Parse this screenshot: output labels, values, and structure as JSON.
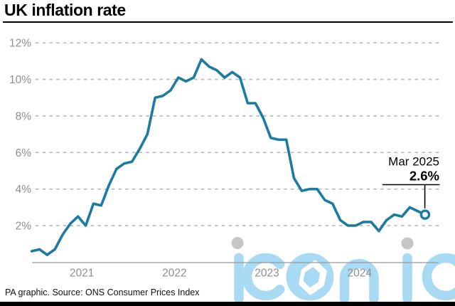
{
  "header": {
    "title": "UK inflation rate"
  },
  "footer": {
    "source": "PA graphic. Source: ONS Consumer Prices Index"
  },
  "watermark": {
    "text": "iconic"
  },
  "colors": {
    "line": "#1b7ba2",
    "grid": "#b7b7b7",
    "axis": "#999999",
    "tick_label": "#8f8f8f",
    "annotation": "#000000",
    "watermark_blue": "#a8daf3",
    "watermark_dot": "#c6c6c6"
  },
  "chart_data": {
    "type": "line",
    "title": "UK inflation rate",
    "xlabel": "",
    "ylabel": "",
    "unit": "%",
    "line_color": "#1b7ba2",
    "grid": "horizontal-dashed",
    "legend": "none",
    "ylim": [
      0,
      12.6
    ],
    "y_ticks": [
      2,
      4,
      6,
      8,
      10,
      12
    ],
    "y_tick_labels": [
      "2%",
      "4%",
      "6%",
      "8%",
      "10%",
      "12%"
    ],
    "x_tick_labels": [
      "2021",
      "2022",
      "2023",
      "2024"
    ],
    "annotation": {
      "label": "Mar 2025",
      "value": "2.6%"
    },
    "x": [
      "Dec 2020",
      "Jan 2021",
      "Feb 2021",
      "Mar 2021",
      "Apr 2021",
      "May 2021",
      "Jun 2021",
      "Jul 2021",
      "Aug 2021",
      "Sep 2021",
      "Oct 2021",
      "Nov 2021",
      "Dec 2021",
      "Jan 2022",
      "Feb 2022",
      "Mar 2022",
      "Apr 2022",
      "May 2022",
      "Jun 2022",
      "Jul 2022",
      "Aug 2022",
      "Sep 2022",
      "Oct 2022",
      "Nov 2022",
      "Dec 2022",
      "Jan 2023",
      "Feb 2023",
      "Mar 2023",
      "Apr 2023",
      "May 2023",
      "Jun 2023",
      "Jul 2023",
      "Aug 2023",
      "Sep 2023",
      "Oct 2023",
      "Nov 2023",
      "Dec 2023",
      "Jan 2024",
      "Feb 2024",
      "Mar 2024",
      "Apr 2024",
      "May 2024",
      "Jun 2024",
      "Jul 2024",
      "Aug 2024",
      "Sep 2024",
      "Oct 2024",
      "Nov 2024",
      "Dec 2024",
      "Jan 2025",
      "Feb 2025",
      "Mar 2025"
    ],
    "values": [
      0.6,
      0.7,
      0.4,
      0.7,
      1.5,
      2.1,
      2.5,
      2.0,
      3.2,
      3.1,
      4.2,
      5.1,
      5.4,
      5.5,
      6.2,
      7.0,
      9.0,
      9.1,
      9.4,
      10.1,
      9.9,
      10.1,
      11.1,
      10.7,
      10.5,
      10.1,
      10.4,
      10.1,
      8.7,
      8.7,
      7.9,
      6.8,
      6.7,
      6.7,
      4.6,
      3.9,
      4.0,
      4.0,
      3.4,
      3.2,
      2.3,
      2.0,
      2.0,
      2.2,
      2.2,
      1.7,
      2.3,
      2.6,
      2.5,
      3.0,
      2.8,
      2.6
    ]
  }
}
